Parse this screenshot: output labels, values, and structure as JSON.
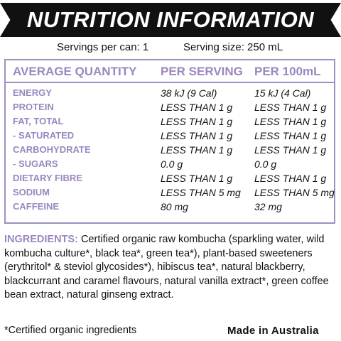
{
  "title": "NUTRITION INFORMATION",
  "servings_per_can": "Servings per can: 1",
  "serving_size": "Serving size: 250 mL",
  "table": {
    "headers": [
      "AVERAGE QUANTITY",
      "PER SERVING",
      "PER 100mL"
    ],
    "rows": [
      {
        "name": "ENERGY",
        "per_serving": "38 kJ (9 Cal)",
        "per_100ml": "15 kJ (4 Cal)"
      },
      {
        "name": "PROTEIN",
        "per_serving": "LESS THAN 1 g",
        "per_100ml": "LESS THAN 1 g"
      },
      {
        "name": "FAT, TOTAL",
        "per_serving": "LESS THAN 1 g",
        "per_100ml": "LESS THAN 1 g"
      },
      {
        "name": "- SATURATED",
        "per_serving": "LESS THAN 1 g",
        "per_100ml": "LESS THAN 1 g"
      },
      {
        "name": "CARBOHYDRATE",
        "per_serving": "LESS THAN 1 g",
        "per_100ml": "LESS THAN 1 g"
      },
      {
        "name": "- SUGARS",
        "per_serving": "0.0 g",
        "per_100ml": "0.0 g"
      },
      {
        "name": "DIETARY FIBRE",
        "per_serving": "LESS THAN 1 g",
        "per_100ml": "LESS THAN 1 g"
      },
      {
        "name": "SODIUM",
        "per_serving": "LESS THAN 5 mg",
        "per_100ml": "LESS THAN 5 mg"
      },
      {
        "name": "CAFFEINE",
        "per_serving": "80 mg",
        "per_100ml": "32 mg"
      }
    ]
  },
  "ingredients_label": "INGREDIENTS:",
  "ingredients_text": "Certified organic raw kombucha (sparkling water, wild kombucha culture*, black tea*, green tea*), plant-based sweeteners (erythritol* & steviol glycosides*), hibiscus tea*, natural blackberry, blackcurrant and caramel flavours, natural vanilla extract*, green coffee bean extract, natural ginseng extract.",
  "footnote": "*Certified organic ingredients",
  "origin": "Made in Australia",
  "colors": {
    "accent": "#9a87c0",
    "border": "#a08ec3",
    "banner": "#111111"
  }
}
